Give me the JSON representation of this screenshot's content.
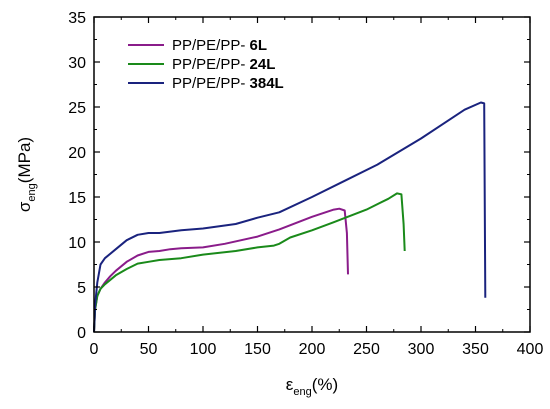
{
  "chart_data": {
    "type": "line",
    "xlabel": {
      "main": "ε",
      "sub": "eng",
      "unit": "(%)"
    },
    "ylabel": {
      "main": "σ",
      "sub": "eng",
      "unit": "(MPa)"
    },
    "xlim": [
      0,
      400
    ],
    "ylim": [
      0,
      35
    ],
    "xticks": [
      0,
      50,
      100,
      150,
      200,
      250,
      300,
      350,
      400
    ],
    "yticks": [
      0,
      5,
      10,
      15,
      20,
      25,
      30,
      35
    ],
    "grid": false,
    "legend_position": "top-left",
    "series": [
      {
        "name": "PP/PE/PP- 6L",
        "name_prefix": "PP/PE/PP- ",
        "name_bold": "6L",
        "color": "#8a1c8a",
        "x": [
          0,
          1,
          3,
          6,
          10,
          15,
          20,
          30,
          40,
          50,
          60,
          70,
          80,
          100,
          120,
          150,
          170,
          200,
          220,
          225,
          230,
          232,
          233
        ],
        "y": [
          0,
          2.5,
          4.0,
          4.8,
          5.5,
          6.2,
          6.8,
          7.8,
          8.5,
          8.9,
          9.0,
          9.2,
          9.3,
          9.4,
          9.8,
          10.6,
          11.4,
          12.8,
          13.6,
          13.7,
          13.5,
          11.0,
          6.4
        ]
      },
      {
        "name": "PP/PE/PP- 24L",
        "name_prefix": "PP/PE/PP- ",
        "name_bold": "24L",
        "color": "#1a8a1a",
        "x": [
          0,
          1,
          3,
          6,
          10,
          20,
          30,
          40,
          50,
          60,
          80,
          100,
          130,
          150,
          165,
          170,
          180,
          200,
          220,
          250,
          270,
          278,
          282,
          284,
          285
        ],
        "y": [
          0,
          2.5,
          4.0,
          4.8,
          5.3,
          6.3,
          7.0,
          7.6,
          7.8,
          8.0,
          8.2,
          8.6,
          9.0,
          9.4,
          9.6,
          9.8,
          10.5,
          11.3,
          12.2,
          13.6,
          14.8,
          15.4,
          15.3,
          12.0,
          9.0
        ]
      },
      {
        "name": "PP/PE/PP- 384L",
        "name_prefix": "PP/PE/PP- ",
        "name_bold": "384L",
        "color": "#1a237e",
        "x": [
          0,
          1,
          3,
          6,
          10,
          20,
          30,
          40,
          50,
          60,
          80,
          100,
          130,
          150,
          170,
          200,
          230,
          260,
          300,
          340,
          355,
          358,
          359
        ],
        "y": [
          0,
          3.0,
          5.5,
          7.5,
          8.2,
          9.2,
          10.2,
          10.8,
          11.0,
          11.0,
          11.3,
          11.5,
          12.0,
          12.7,
          13.3,
          15.0,
          16.8,
          18.6,
          21.5,
          24.7,
          25.5,
          25.4,
          3.8
        ]
      }
    ]
  }
}
